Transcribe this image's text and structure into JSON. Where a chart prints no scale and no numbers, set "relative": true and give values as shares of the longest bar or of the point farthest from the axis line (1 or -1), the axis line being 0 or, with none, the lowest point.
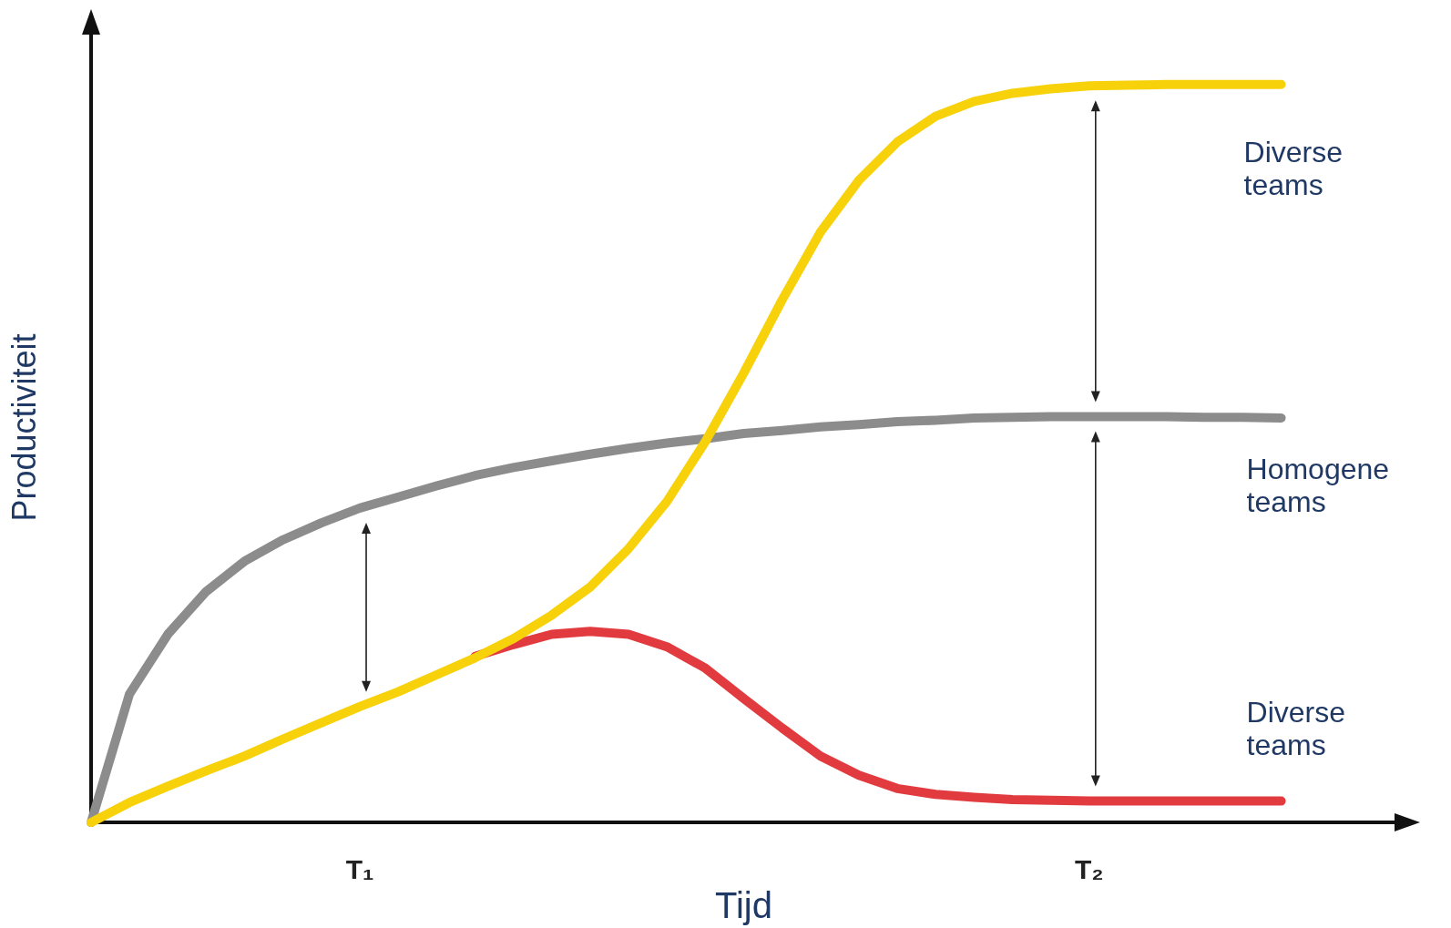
{
  "chart_data": {
    "type": "line",
    "relative": true,
    "xlabel": "Tijd",
    "ylabel": "Productiviteit",
    "categories": [
      null,
      null,
      null,
      null,
      null,
      null,
      null,
      "T₁",
      null,
      null,
      null,
      null,
      null,
      null,
      null,
      null,
      null,
      null,
      null,
      null,
      null,
      null,
      null,
      null,
      null,
      null,
      "T₂",
      null,
      null,
      null,
      null,
      null,
      null,
      null,
      null
    ],
    "series": [
      {
        "name": "Diverse teams",
        "color": "#e23b3f",
        "values": [
          null,
          null,
          null,
          null,
          null,
          null,
          null,
          null,
          null,
          null,
          0.225,
          0.241,
          0.255,
          0.259,
          0.255,
          0.238,
          0.209,
          0.168,
          0.128,
          0.09,
          0.064,
          0.046,
          0.038,
          0.034,
          0.031,
          0.03,
          0.029,
          0.029,
          0.029,
          0.029,
          0.029,
          0.029,
          null,
          null,
          null
        ]
      },
      {
        "name": "Homogene teams",
        "color": "#8c8c8c",
        "values": [
          0,
          0.174,
          0.255,
          0.313,
          0.354,
          0.383,
          0.406,
          0.426,
          0.441,
          0.456,
          0.47,
          0.481,
          0.49,
          0.499,
          0.507,
          0.514,
          0.52,
          0.527,
          0.531,
          0.536,
          0.539,
          0.543,
          0.545,
          0.548,
          0.549,
          0.55,
          0.55,
          0.55,
          0.55,
          0.549,
          0.549,
          0.548,
          null,
          null,
          null
        ]
      },
      {
        "name": "Diverse teams",
        "color": "#f7d10a",
        "values": [
          0,
          0.027,
          0.049,
          0.07,
          0.09,
          0.113,
          0.135,
          0.157,
          0.177,
          0.2,
          0.223,
          0.249,
          0.281,
          0.319,
          0.371,
          0.435,
          0.516,
          0.609,
          0.708,
          0.8,
          0.87,
          0.922,
          0.957,
          0.977,
          0.988,
          0.994,
          0.998,
          0.999,
          1,
          1,
          1,
          1,
          null,
          null,
          null
        ]
      }
    ],
    "legend": false,
    "grid": false,
    "line_style": "solid"
  }
}
